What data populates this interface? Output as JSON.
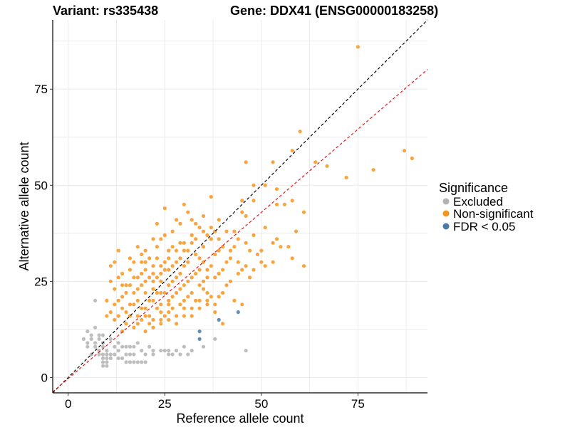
{
  "chart_data": {
    "type": "scatter",
    "title_left": "Variant: rs335438",
    "title_right": "Gene: DDX41 (ENSG00000183258)",
    "xlabel": "Reference allele count",
    "ylabel": "Alternative allele count",
    "xlim": [
      -4,
      93
    ],
    "ylim": [
      -4,
      93
    ],
    "xticks": [
      0,
      25,
      50,
      75
    ],
    "yticks": [
      0,
      25,
      50,
      75
    ],
    "grid": true,
    "reference_lines": [
      {
        "name": "identity",
        "slope": 1,
        "intercept": 0,
        "color": "#000000",
        "style": "dashed"
      },
      {
        "name": "fit",
        "slope": 0.865,
        "intercept": -0.3,
        "color": "#e41a1c",
        "style": "dashed"
      }
    ],
    "legend": {
      "title": "Significance",
      "position": "right",
      "entries": [
        {
          "label": "Excluded",
          "color": "#b3b3b3"
        },
        {
          "label": "Non-significant",
          "color": "#f7941d"
        },
        {
          "label": "FDR < 0.05",
          "color": "#4a7aa7"
        }
      ]
    },
    "series": [
      {
        "name": "Excluded",
        "color": "#b3b3b3",
        "points": [
          [
            7,
            20
          ],
          [
            7,
            13
          ],
          [
            5,
            12
          ],
          [
            6,
            11
          ],
          [
            8,
            11
          ],
          [
            9,
            11
          ],
          [
            4,
            10
          ],
          [
            6,
            10
          ],
          [
            8,
            10
          ],
          [
            5,
            9
          ],
          [
            7,
            9
          ],
          [
            9,
            9
          ],
          [
            5,
            8
          ],
          [
            7,
            8
          ],
          [
            9,
            8
          ],
          [
            8,
            7
          ],
          [
            10,
            7
          ],
          [
            6,
            6
          ],
          [
            8,
            6
          ],
          [
            9,
            6
          ],
          [
            10,
            6
          ],
          [
            11,
            6
          ],
          [
            9,
            5
          ],
          [
            10,
            5
          ],
          [
            11,
            5
          ],
          [
            9,
            4
          ],
          [
            10,
            4
          ],
          [
            9,
            3
          ],
          [
            10,
            3
          ],
          [
            11,
            10
          ],
          [
            12,
            8
          ],
          [
            13,
            7
          ],
          [
            12,
            6
          ],
          [
            13,
            5
          ],
          [
            14,
            5
          ],
          [
            15,
            6
          ],
          [
            16,
            6
          ],
          [
            17,
            6
          ],
          [
            15,
            4
          ],
          [
            16,
            4
          ],
          [
            17,
            4
          ],
          [
            18,
            4
          ],
          [
            19,
            4
          ],
          [
            20,
            4
          ],
          [
            13,
            9
          ],
          [
            14,
            8
          ],
          [
            16,
            8
          ],
          [
            18,
            9
          ],
          [
            21,
            8
          ],
          [
            22,
            7
          ],
          [
            24,
            7
          ],
          [
            26,
            7
          ],
          [
            28,
            7
          ],
          [
            30,
            8
          ],
          [
            20,
            6
          ],
          [
            22,
            6
          ],
          [
            25,
            7
          ],
          [
            27,
            6
          ],
          [
            31,
            6
          ],
          [
            32,
            7
          ],
          [
            29,
            6
          ],
          [
            26,
            6
          ],
          [
            35,
            8
          ],
          [
            46,
            7
          ],
          [
            38,
            10
          ],
          [
            19,
            7
          ],
          [
            17,
            8
          ],
          [
            15,
            8
          ]
        ]
      },
      {
        "name": "Non-significant",
        "color": "#f7941d",
        "points": [
          [
            75,
            86
          ],
          [
            60,
            64
          ],
          [
            58,
            59
          ],
          [
            87,
            59
          ],
          [
            89,
            57
          ],
          [
            53,
            56
          ],
          [
            64,
            56
          ],
          [
            46,
            56
          ],
          [
            67,
            55
          ],
          [
            79,
            54
          ],
          [
            72,
            52
          ],
          [
            48,
            50
          ],
          [
            51,
            50
          ],
          [
            54,
            49
          ],
          [
            37,
            47
          ],
          [
            58,
            46
          ],
          [
            61,
            43
          ],
          [
            46,
            42
          ],
          [
            56,
            45
          ],
          [
            54,
            45
          ],
          [
            30,
            45
          ],
          [
            45,
            43
          ],
          [
            45,
            46
          ],
          [
            48,
            46
          ],
          [
            32,
            41
          ],
          [
            39,
            41
          ],
          [
            34,
            39
          ],
          [
            48,
            37
          ],
          [
            50,
            33
          ],
          [
            51,
            39
          ],
          [
            54,
            36
          ],
          [
            55,
            34
          ],
          [
            59,
            38
          ],
          [
            58,
            31
          ],
          [
            57,
            34
          ],
          [
            53,
            35
          ],
          [
            61,
            29
          ],
          [
            51,
            29
          ],
          [
            53,
            30
          ],
          [
            50,
            30
          ],
          [
            45,
            28
          ],
          [
            47,
            26
          ],
          [
            35,
            25
          ],
          [
            30,
            29
          ],
          [
            24,
            36
          ],
          [
            26,
            33
          ],
          [
            39,
            33
          ],
          [
            36,
            28
          ],
          [
            15,
            17
          ],
          [
            17,
            22
          ],
          [
            19,
            24
          ],
          [
            12,
            15
          ],
          [
            11,
            29
          ],
          [
            10,
            16
          ],
          [
            13,
            20
          ],
          [
            14,
            12
          ],
          [
            20,
            30
          ],
          [
            22,
            36
          ],
          [
            28,
            41
          ],
          [
            42,
            31
          ],
          [
            44,
            30
          ],
          [
            40,
            22
          ],
          [
            43,
            20
          ],
          [
            45,
            19
          ],
          [
            36,
            19
          ],
          [
            40,
            14
          ],
          [
            38,
            17
          ],
          [
            13,
            33
          ],
          [
            12,
            30
          ],
          [
            14,
            27
          ],
          [
            16,
            31
          ],
          [
            18,
            34
          ],
          [
            21,
            20
          ],
          [
            23,
            26
          ],
          [
            25,
            22
          ],
          [
            27,
            25
          ],
          [
            29,
            27
          ],
          [
            31,
            30
          ],
          [
            33,
            32
          ],
          [
            35,
            34
          ],
          [
            37,
            36
          ],
          [
            41,
            38
          ],
          [
            43,
            34
          ],
          [
            18,
            14
          ],
          [
            20,
            12
          ],
          [
            24,
            14
          ],
          [
            22,
            13
          ],
          [
            28,
            14
          ],
          [
            32,
            16
          ],
          [
            34,
            18
          ],
          [
            26,
            17
          ],
          [
            30,
            20
          ],
          [
            16,
            28
          ],
          [
            19,
            27
          ],
          [
            22,
            29
          ],
          [
            15,
            24
          ],
          [
            17,
            19
          ],
          [
            23,
            31
          ],
          [
            25,
            28
          ],
          [
            27,
            21
          ],
          [
            29,
            23
          ],
          [
            31,
            25
          ],
          [
            33,
            27
          ],
          [
            21,
            16
          ],
          [
            19,
            18
          ],
          [
            24,
            19
          ],
          [
            26,
            24
          ],
          [
            28,
            26
          ],
          [
            30,
            24
          ],
          [
            32,
            22
          ],
          [
            34,
            24
          ],
          [
            36,
            22
          ],
          [
            38,
            26
          ],
          [
            40,
            28
          ],
          [
            42,
            25
          ],
          [
            20,
            22
          ],
          [
            18,
            20
          ],
          [
            14,
            18
          ],
          [
            16,
            16
          ],
          [
            12,
            19
          ],
          [
            22,
            23
          ],
          [
            24,
            25
          ],
          [
            26,
            28
          ],
          [
            28,
            30
          ],
          [
            30,
            33
          ],
          [
            32,
            35
          ],
          [
            34,
            31
          ],
          [
            36,
            37
          ],
          [
            38,
            32
          ],
          [
            20,
            33
          ],
          [
            25,
            37
          ],
          [
            27,
            34
          ],
          [
            29,
            31
          ],
          [
            35,
            30
          ],
          [
            37,
            29
          ],
          [
            39,
            27
          ],
          [
            41,
            24
          ],
          [
            23,
            18
          ],
          [
            25,
            16
          ],
          [
            27,
            18
          ],
          [
            29,
            19
          ],
          [
            31,
            21
          ],
          [
            33,
            20
          ],
          [
            35,
            23
          ],
          [
            37,
            21
          ],
          [
            13,
            26
          ],
          [
            15,
            22
          ],
          [
            17,
            26
          ],
          [
            19,
            30
          ],
          [
            21,
            26
          ],
          [
            23,
            22
          ],
          [
            18,
            16
          ],
          [
            20,
            18
          ],
          [
            22,
            20
          ],
          [
            24,
            22
          ],
          [
            26,
            20
          ],
          [
            28,
            22
          ],
          [
            30,
            18
          ],
          [
            32,
            26
          ],
          [
            34,
            28
          ],
          [
            36,
            26
          ],
          [
            14,
            21
          ],
          [
            16,
            19
          ],
          [
            18,
            23
          ],
          [
            20,
            25
          ],
          [
            22,
            27
          ],
          [
            24,
            29
          ],
          [
            26,
            31
          ],
          [
            28,
            33
          ],
          [
            30,
            35
          ],
          [
            32,
            37
          ],
          [
            21,
            31
          ],
          [
            23,
            34
          ],
          [
            25,
            30
          ],
          [
            27,
            29
          ],
          [
            29,
            35
          ],
          [
            31,
            33
          ],
          [
            33,
            36
          ],
          [
            35,
            38
          ],
          [
            17,
            30
          ],
          [
            19,
            32
          ],
          [
            12,
            23
          ],
          [
            11,
            25
          ],
          [
            10,
            20
          ],
          [
            43,
            38
          ],
          [
            44,
            36
          ],
          [
            46,
            35
          ],
          [
            47,
            33
          ],
          [
            49,
            32
          ],
          [
            48,
            28
          ],
          [
            46,
            29
          ],
          [
            44,
            27
          ],
          [
            39,
            36
          ],
          [
            40,
            34
          ],
          [
            42,
            33
          ],
          [
            41,
            30
          ],
          [
            37,
            39
          ],
          [
            38,
            38
          ],
          [
            23,
            40
          ],
          [
            27,
            38
          ],
          [
            25,
            44
          ],
          [
            31,
            43
          ],
          [
            29,
            40
          ],
          [
            35,
            42
          ],
          [
            33,
            40
          ],
          [
            24,
            17
          ],
          [
            26,
            15
          ],
          [
            21,
            14
          ],
          [
            19,
            15
          ],
          [
            17,
            13
          ],
          [
            15,
            14
          ],
          [
            13,
            16
          ],
          [
            11,
            17
          ],
          [
            28,
            16
          ],
          [
            30,
            16
          ],
          [
            32,
            18
          ],
          [
            34,
            20
          ],
          [
            36,
            20
          ],
          [
            38,
            19
          ],
          [
            39,
            21
          ],
          [
            20,
            16
          ],
          [
            22,
            15
          ],
          [
            24,
            15
          ],
          [
            26,
            19
          ],
          [
            18,
            26
          ],
          [
            16,
            24
          ],
          [
            14,
            24
          ],
          [
            20,
            28
          ],
          [
            22,
            25
          ],
          [
            24,
            27
          ]
        ]
      },
      {
        "name": "FDR < 0.05",
        "color": "#4a7aa7",
        "points": [
          [
            34,
            12
          ],
          [
            34,
            10
          ],
          [
            39,
            15
          ],
          [
            44,
            17
          ]
        ]
      }
    ]
  }
}
